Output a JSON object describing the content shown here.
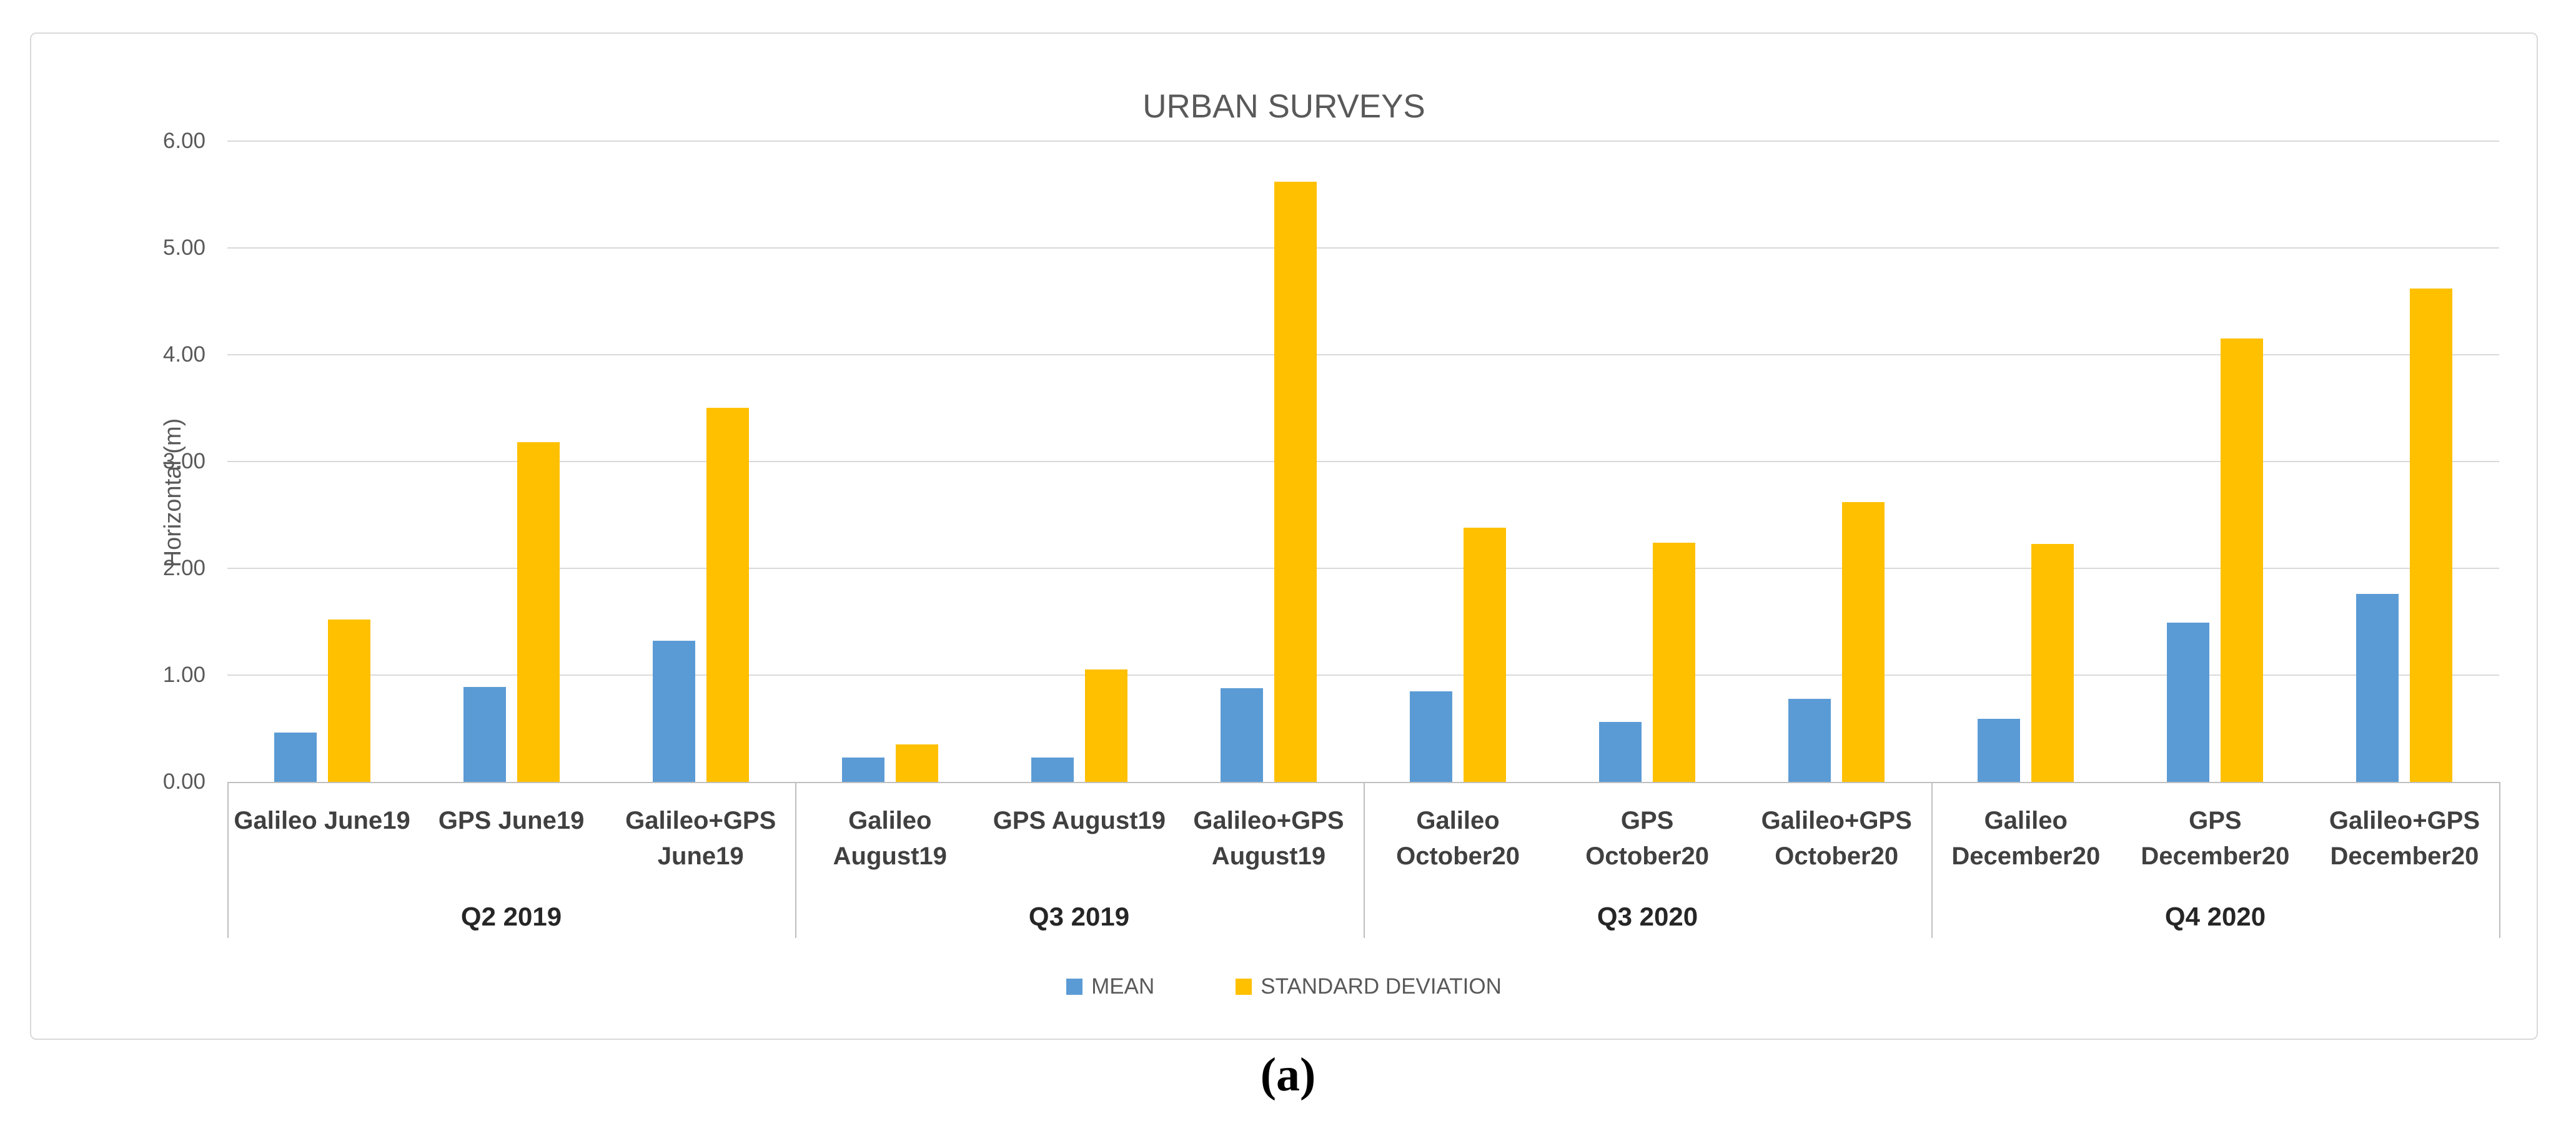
{
  "figure": {
    "caption": "(a)"
  },
  "chart": {
    "title": "URBAN SURVEYS",
    "y_axis_title": "Horizontal (m)",
    "legend": {
      "mean_label": "MEAN",
      "std_label": "STANDARD DEVIATION"
    }
  },
  "colors": {
    "mean_bar": "#5B9BD5",
    "std_bar": "#FFC000",
    "gridline": "#D9D9D9",
    "axis_line": "#BFBFBF",
    "tick_text": "#595959",
    "category_text": "#404040",
    "quarter_text": "#262626",
    "title_text": "#595959",
    "frame_border": "#D9D9D9"
  },
  "chart_data": {
    "type": "bar",
    "title": "URBAN SURVEYS",
    "xlabel": "",
    "ylabel": "Horizontal (m)",
    "ylim": [
      0,
      6
    ],
    "ytick_step": 1,
    "ytick_format": "0.00",
    "grid": true,
    "legend_position": "bottom",
    "categories": [
      [
        "Galileo June19"
      ],
      [
        "GPS June19"
      ],
      [
        "Galileo+GPS",
        "June19"
      ],
      [
        "Galileo",
        "August19"
      ],
      [
        "GPS August19"
      ],
      [
        "Galileo+GPS",
        "August19"
      ],
      [
        "Galileo",
        "October20"
      ],
      [
        "GPS",
        "October20"
      ],
      [
        "Galileo+GPS",
        "October20"
      ],
      [
        "Galileo",
        "December20"
      ],
      [
        "GPS",
        "December20"
      ],
      [
        "Galileo+GPS",
        "December20"
      ]
    ],
    "group_tiers": [
      {
        "label": "Q2 2019",
        "span": 3
      },
      {
        "label": "Q3 2019",
        "span": 3
      },
      {
        "label": "Q3 2020",
        "span": 3
      },
      {
        "label": "Q4 2020",
        "span": 3
      }
    ],
    "series": [
      {
        "name": "MEAN",
        "color": "#5B9BD5",
        "values": [
          0.46,
          0.89,
          1.32,
          0.23,
          0.23,
          0.88,
          0.85,
          0.56,
          0.78,
          0.59,
          1.49,
          1.76
        ]
      },
      {
        "name": "STANDARD DEVIATION",
        "color": "#FFC000",
        "values": [
          1.52,
          3.18,
          3.5,
          0.35,
          1.05,
          5.62,
          2.38,
          2.24,
          2.62,
          2.23,
          4.15,
          4.62
        ]
      }
    ]
  }
}
